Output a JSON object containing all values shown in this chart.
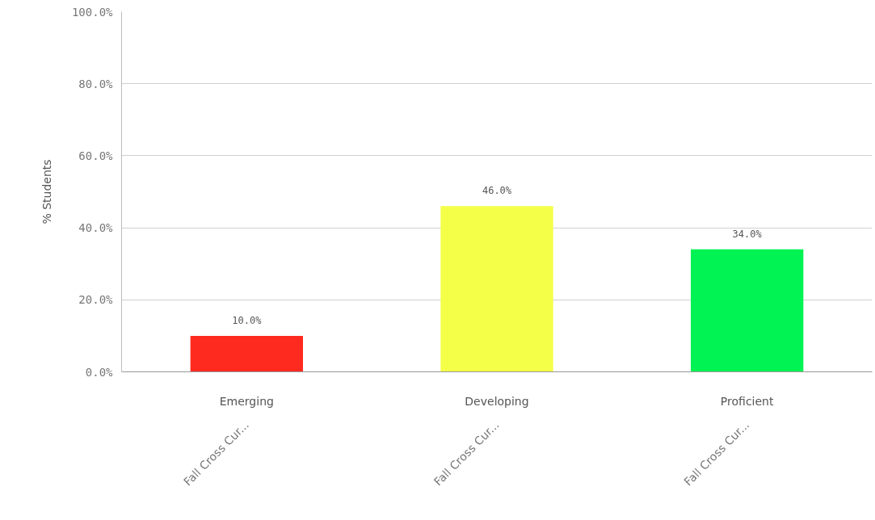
{
  "chart_data": {
    "type": "bar",
    "ylabel": "% Students",
    "categories": [
      "Emerging",
      "Developing",
      "Proficient"
    ],
    "values": [
      10,
      46,
      34
    ],
    "colors": [
      "#ff2a1f",
      "#f4ff47",
      "#00f353"
    ],
    "value_labels": [
      "10.0%",
      "46.0%",
      "34.0%"
    ],
    "annotations": [
      "Fall Cross Cur...",
      "Fall Cross Cur...",
      "Fall Cross Cur..."
    ],
    "ylim": [
      0,
      100
    ],
    "yticks": [
      {
        "value": 0,
        "label": "0.0%"
      },
      {
        "value": 20,
        "label": "20.0%"
      },
      {
        "value": 40,
        "label": "40.0%"
      },
      {
        "value": 60,
        "label": "60.0%"
      },
      {
        "value": 80,
        "label": "80.0%"
      },
      {
        "value": 100,
        "label": "100.0%"
      }
    ],
    "grid": "y"
  }
}
